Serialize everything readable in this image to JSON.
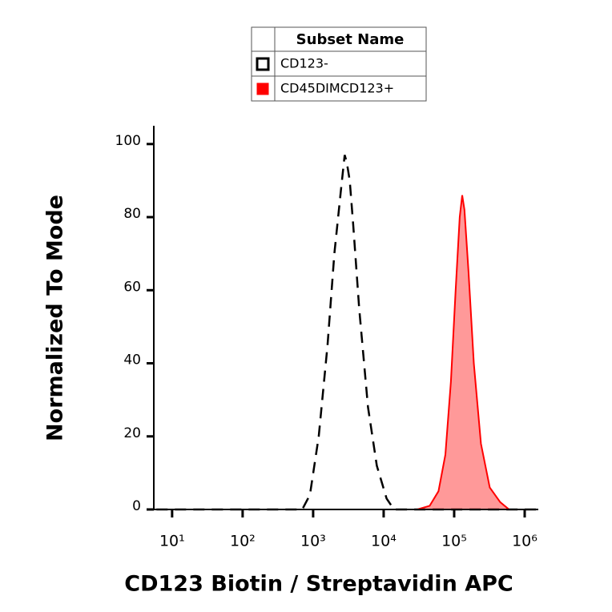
{
  "chart_data": {
    "type": "histogram-overlay",
    "xlabel": "CD123 Biotin / Streptavidin APC",
    "ylabel": "Normalized To Mode",
    "legend_title": "Subset Name",
    "xscale": "log",
    "xlim": [
      5.5,
      1560000
    ],
    "ylim": [
      0,
      105
    ],
    "xticks": [
      {
        "value": 10,
        "label": "10¹"
      },
      {
        "value": 100,
        "label": "10²"
      },
      {
        "value": 1000,
        "label": "10³"
      },
      {
        "value": 10000,
        "label": "10⁴"
      },
      {
        "value": 100000,
        "label": "10⁵"
      },
      {
        "value": 1000000,
        "label": "10⁶"
      }
    ],
    "yticks": [
      0,
      20,
      40,
      60,
      80,
      100
    ],
    "series": [
      {
        "name": "CD123-",
        "color": "#000000",
        "line_style": "dashed",
        "filled": false,
        "x": [
          6,
          100,
          700,
          900,
          1200,
          1600,
          2000,
          2500,
          2800,
          3000,
          3300,
          3700,
          4500,
          6000,
          8000,
          11000,
          14000,
          100000,
          1500000
        ],
        "values": [
          0,
          0,
          0,
          4,
          20,
          45,
          70,
          88,
          97,
          95,
          90,
          78,
          55,
          28,
          12,
          3,
          0,
          0,
          0
        ]
      },
      {
        "name": "CD45DIMCD123+",
        "color": "#ff0000",
        "line_style": "solid",
        "filled": true,
        "x": [
          6,
          1000,
          30000,
          45000,
          60000,
          75000,
          90000,
          105000,
          120000,
          130000,
          140000,
          160000,
          190000,
          240000,
          320000,
          450000,
          600000,
          1500000
        ],
        "values": [
          0,
          0,
          0,
          1,
          5,
          15,
          35,
          60,
          80,
          86,
          82,
          65,
          40,
          18,
          6,
          2,
          0,
          0
        ]
      }
    ]
  }
}
